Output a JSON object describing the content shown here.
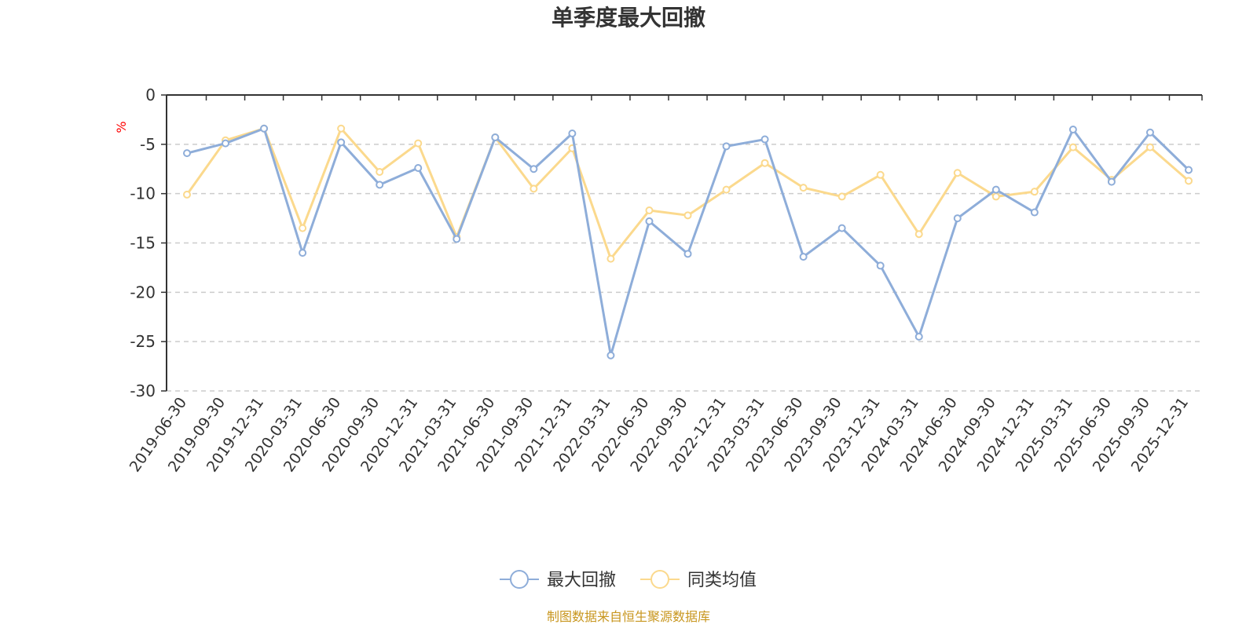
{
  "chart_data": {
    "type": "line",
    "title": "单季度最大回撤",
    "ylabel": "%",
    "ylim": [
      -30,
      0
    ],
    "yticks": [
      0,
      -5,
      -10,
      -15,
      -20,
      -25,
      -30
    ],
    "grid": true,
    "legend_position": "bottom-center",
    "categories": [
      "2019-06-30",
      "2019-09-30",
      "2019-12-31",
      "2020-03-31",
      "2020-06-30",
      "2020-09-30",
      "2020-12-31",
      "2021-03-31",
      "2021-06-30",
      "2021-09-30",
      "2021-12-31",
      "2022-03-31",
      "2022-06-30",
      "2022-09-30",
      "2022-12-31",
      "2023-03-31",
      "2023-06-30",
      "2023-09-30",
      "2023-12-31",
      "2024-03-31",
      "2024-06-30",
      "2024-09-30",
      "2024-12-31",
      "2025-03-31",
      "2025-06-30",
      "2025-09-30",
      "2025-12-31"
    ],
    "series": [
      {
        "name": "最大回撤",
        "color": "#8eadd9",
        "values": [
          -5.9,
          -4.9,
          -3.4,
          -16.0,
          -4.8,
          -9.1,
          -7.4,
          -14.6,
          -4.3,
          -7.5,
          -3.9,
          -26.4,
          -12.8,
          -16.1,
          -5.2,
          -4.5,
          -16.4,
          -13.5,
          -17.3,
          -24.5,
          -12.5,
          -9.6,
          -11.9,
          -3.5,
          -8.8,
          -3.8,
          -7.6
        ]
      },
      {
        "name": "同类均值",
        "color": "#fbd98d",
        "values": [
          -10.1,
          -4.6,
          -3.4,
          -13.5,
          -3.4,
          -7.8,
          -4.9,
          -14.4,
          -4.3,
          -9.5,
          -5.4,
          -16.6,
          -11.7,
          -12.2,
          -9.6,
          -6.9,
          -9.4,
          -10.3,
          -8.1,
          -14.1,
          -7.9,
          -10.3,
          -9.8,
          -5.3,
          -8.6,
          -5.3,
          -8.7
        ]
      }
    ],
    "source": "制图数据来自恒生聚源数据库"
  }
}
